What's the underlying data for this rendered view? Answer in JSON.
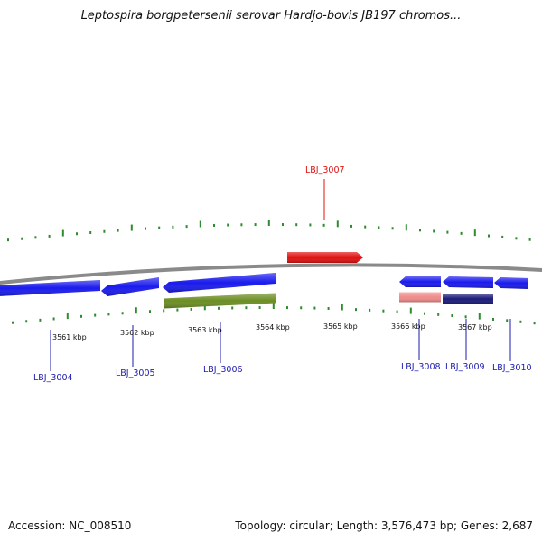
{
  "title": "Leptospira borgpetersenii serovar Hardjo-bovis JB197 chromos...",
  "footer": {
    "accession": "Accession: NC_008510",
    "summary": "Topology: circular; Length: 3,576,473 bp; Genes: 2,687"
  },
  "colors": {
    "backbone": "#8a8a8a",
    "tick": "#2e8b2e",
    "gene_forward_selected": "#e01010",
    "gene_blue": "#1a1aee",
    "gene_olive": "#6b8e23",
    "gene_pink": "#f08a8a",
    "gene_navy": "#1a1a7a",
    "label_red": "#e01010",
    "label_blue": "#1a1ab0"
  },
  "axis_labels": [
    "3561 kbp",
    "3562 kbp",
    "3563 kbp",
    "3564 kbp",
    "3565 kbp",
    "3566 kbp",
    "3567 kbp"
  ],
  "genes": [
    {
      "id": "LBJ_3004",
      "color": "gene_blue",
      "strand": "reverse",
      "label_color": "label_blue"
    },
    {
      "id": "LBJ_3005",
      "color": "gene_blue",
      "strand": "reverse",
      "label_color": "label_blue"
    },
    {
      "id": "LBJ_3006",
      "color": "gene_blue",
      "strand": "reverse",
      "label_color": "label_blue"
    },
    {
      "id": "LBJ_3006b",
      "color": "gene_olive",
      "strand": "none",
      "label_color": "label_blue"
    },
    {
      "id": "LBJ_3007",
      "color": "gene_forward_selected",
      "strand": "forward",
      "label_color": "label_red"
    },
    {
      "id": "LBJ_3008",
      "color": "gene_blue",
      "strand": "reverse",
      "label_color": "label_blue"
    },
    {
      "id": "LBJ_3008b",
      "color": "gene_pink",
      "strand": "none",
      "label_color": "label_blue"
    },
    {
      "id": "LBJ_3009",
      "color": "gene_blue",
      "strand": "reverse",
      "label_color": "label_blue"
    },
    {
      "id": "LBJ_3009b",
      "color": "gene_navy",
      "strand": "none",
      "label_color": "label_blue"
    },
    {
      "id": "LBJ_3010",
      "color": "gene_blue",
      "strand": "reverse",
      "label_color": "label_blue"
    }
  ],
  "gene_labels": [
    "LBJ_3004",
    "LBJ_3005",
    "LBJ_3006",
    "LBJ_3007",
    "LBJ_3008",
    "LBJ_3009",
    "LBJ_3010"
  ]
}
